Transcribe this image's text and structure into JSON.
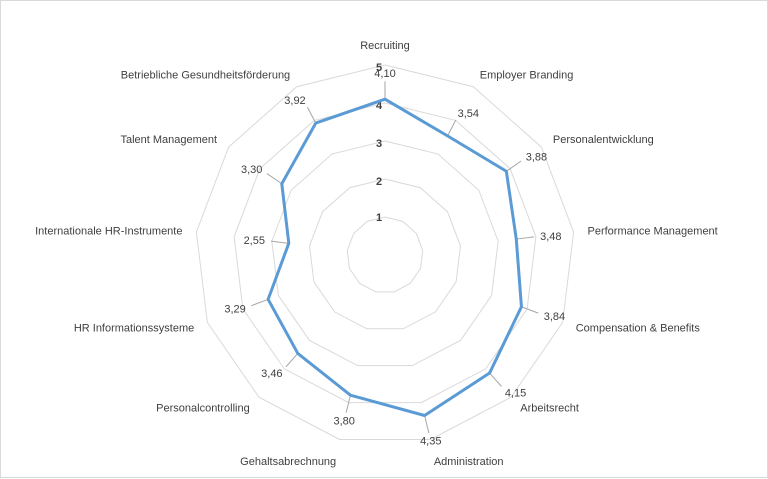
{
  "chart_data": {
    "type": "radar",
    "categories": [
      "Recruiting",
      "Employer Branding",
      "Personalentwicklung",
      "Performance Management",
      "Compensation & Benefits",
      "Arbeitsrecht",
      "Administration",
      "Gehaltsabrechnung",
      "Personalcontrolling",
      "HR Informationssysteme",
      "Internationale HR-Instrumente",
      "Talent Management",
      "Betriebliche Gesundheitsförderung"
    ],
    "values": [
      4.1,
      3.54,
      3.88,
      3.48,
      3.84,
      4.15,
      4.35,
      3.8,
      3.46,
      3.29,
      2.55,
      3.3,
      3.92
    ],
    "value_labels": [
      "4,10",
      "3,54",
      "3,88",
      "3,48",
      "3,84",
      "4,15",
      "4,35",
      "3,80",
      "3,46",
      "3,29",
      "2,55",
      "3,30",
      "3,92"
    ],
    "rlim": [
      0,
      5
    ],
    "ticks": [
      "1",
      "2",
      "3",
      "4",
      "5"
    ],
    "series_color": "#5b9bd5",
    "grid_color": "#d9d9d9",
    "leader_color": "#a6a6a6"
  }
}
